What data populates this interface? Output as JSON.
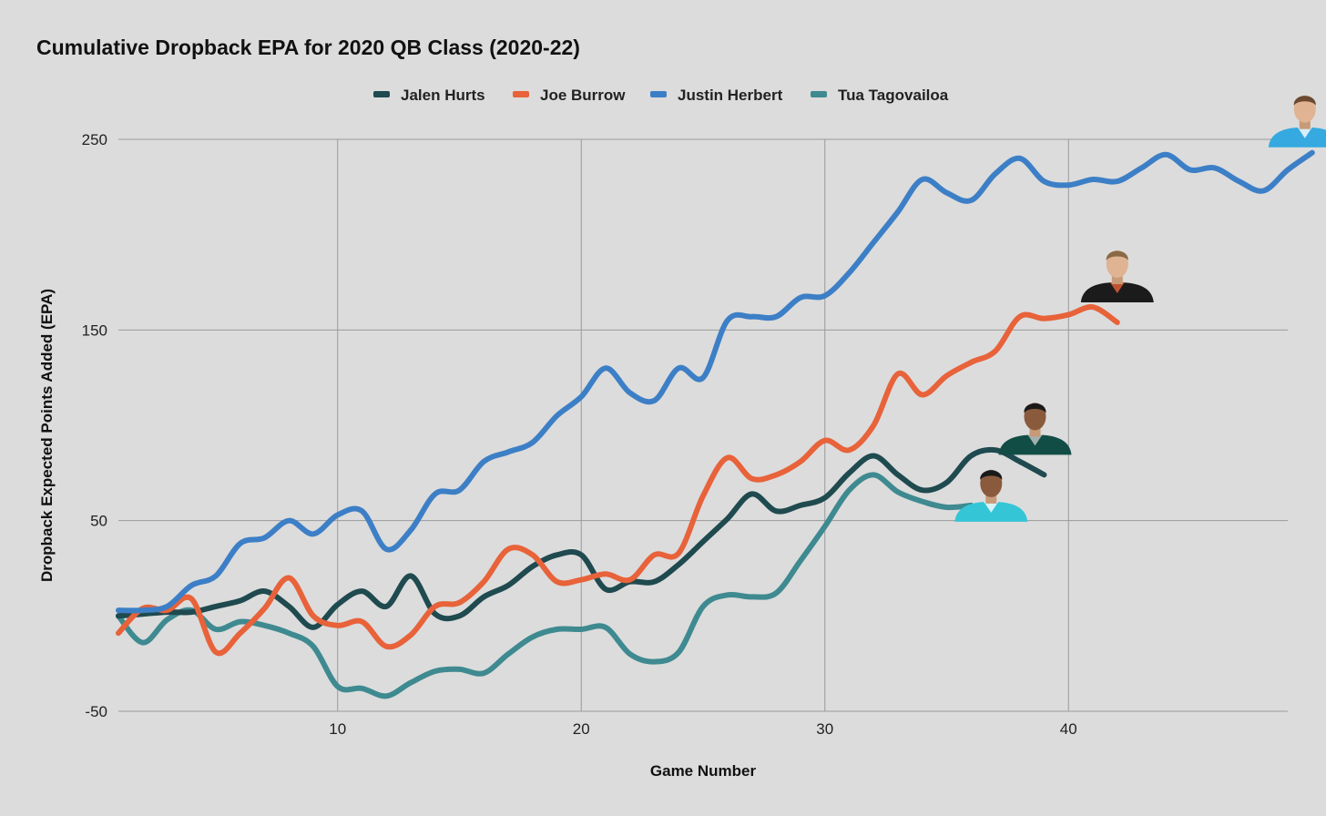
{
  "chart_data": {
    "type": "line",
    "title": "Cumulative Dropback EPA for 2020 QB Class (2020-22)",
    "xlabel": "Game Number",
    "ylabel": "Dropback Expected Points Added (EPA)",
    "xlim": [
      1,
      49
    ],
    "ylim": [
      -50,
      250
    ],
    "xticks": [
      10,
      20,
      30,
      40
    ],
    "yticks": [
      -50,
      50,
      150,
      250
    ],
    "grid": true,
    "legend_position": "top-center",
    "series": [
      {
        "name": "Jalen Hurts",
        "color": "#1f4a4f",
        "values": [
          0,
          1,
          2,
          2,
          5,
          8,
          13,
          5,
          -6,
          6,
          13,
          5,
          21,
          1,
          0,
          10,
          16,
          26,
          32,
          32,
          14,
          18,
          18,
          27,
          39,
          51,
          64,
          55,
          58,
          62,
          75,
          84,
          74,
          66,
          70,
          84,
          87,
          81,
          74
        ]
      },
      {
        "name": "Joe Burrow",
        "color": "#e8623a",
        "values": [
          -9,
          4,
          3,
          9,
          -19,
          -9,
          4,
          20,
          0,
          -5,
          -3,
          -16,
          -10,
          5,
          7,
          18,
          35,
          32,
          18,
          19,
          22,
          19,
          32,
          33,
          63,
          83,
          72,
          74,
          81,
          92,
          87,
          100,
          127,
          116,
          126,
          133,
          139,
          157,
          156,
          158,
          162,
          154
        ]
      },
      {
        "name": "Justin Herbert",
        "color": "#3c7fc6",
        "values": [
          3,
          3,
          5,
          16,
          21,
          38,
          41,
          50,
          43,
          53,
          55,
          35,
          45,
          64,
          66,
          81,
          86,
          91,
          105,
          115,
          130,
          117,
          113,
          130,
          125,
          155,
          157,
          157,
          167,
          168,
          180,
          196,
          212,
          229,
          222,
          218,
          232,
          240,
          228,
          226,
          229,
          228,
          235,
          242,
          234,
          235,
          228,
          223,
          234,
          243
        ]
      },
      {
        "name": "Tua Tagovailoa",
        "color": "#3e8a90",
        "values": [
          0,
          -14,
          -2,
          3,
          -7,
          -3,
          -5,
          -9,
          -16,
          -37,
          -38,
          -42,
          -35,
          -29,
          -28,
          -30,
          -20,
          -11,
          -7,
          -7,
          -6,
          -20,
          -24,
          -19,
          5,
          11,
          10,
          12,
          29,
          47,
          66,
          74,
          65,
          60,
          57,
          58
        ]
      }
    ]
  },
  "legend_items": [
    {
      "name": "Jalen Hurts",
      "color": "#1f4a4f"
    },
    {
      "name": "Joe Burrow",
      "color": "#e8623a"
    },
    {
      "name": "Justin Herbert",
      "color": "#3c7fc6"
    },
    {
      "name": "Tua Tagovailoa",
      "color": "#3e8a90"
    }
  ],
  "headshots": [
    {
      "series": "Justin Herbert",
      "icon": "player-headshot-icon",
      "jersey_color": "#35a9e0",
      "accent_color": "#ffffff",
      "hair_color": "#6b4a2f"
    },
    {
      "series": "Joe Burrow",
      "icon": "player-headshot-icon",
      "jersey_color": "#1b1b1b",
      "accent_color": "#e8623a",
      "hair_color": "#8a6a45"
    },
    {
      "series": "Jalen Hurts",
      "icon": "player-headshot-icon",
      "jersey_color": "#114d45",
      "accent_color": "#c9c9c9",
      "hair_color": "#1a1a1a"
    },
    {
      "series": "Tua Tagovailoa",
      "icon": "player-headshot-icon",
      "jersey_color": "#34c6d6",
      "accent_color": "#ffffff",
      "hair_color": "#1a1a1a"
    }
  ]
}
